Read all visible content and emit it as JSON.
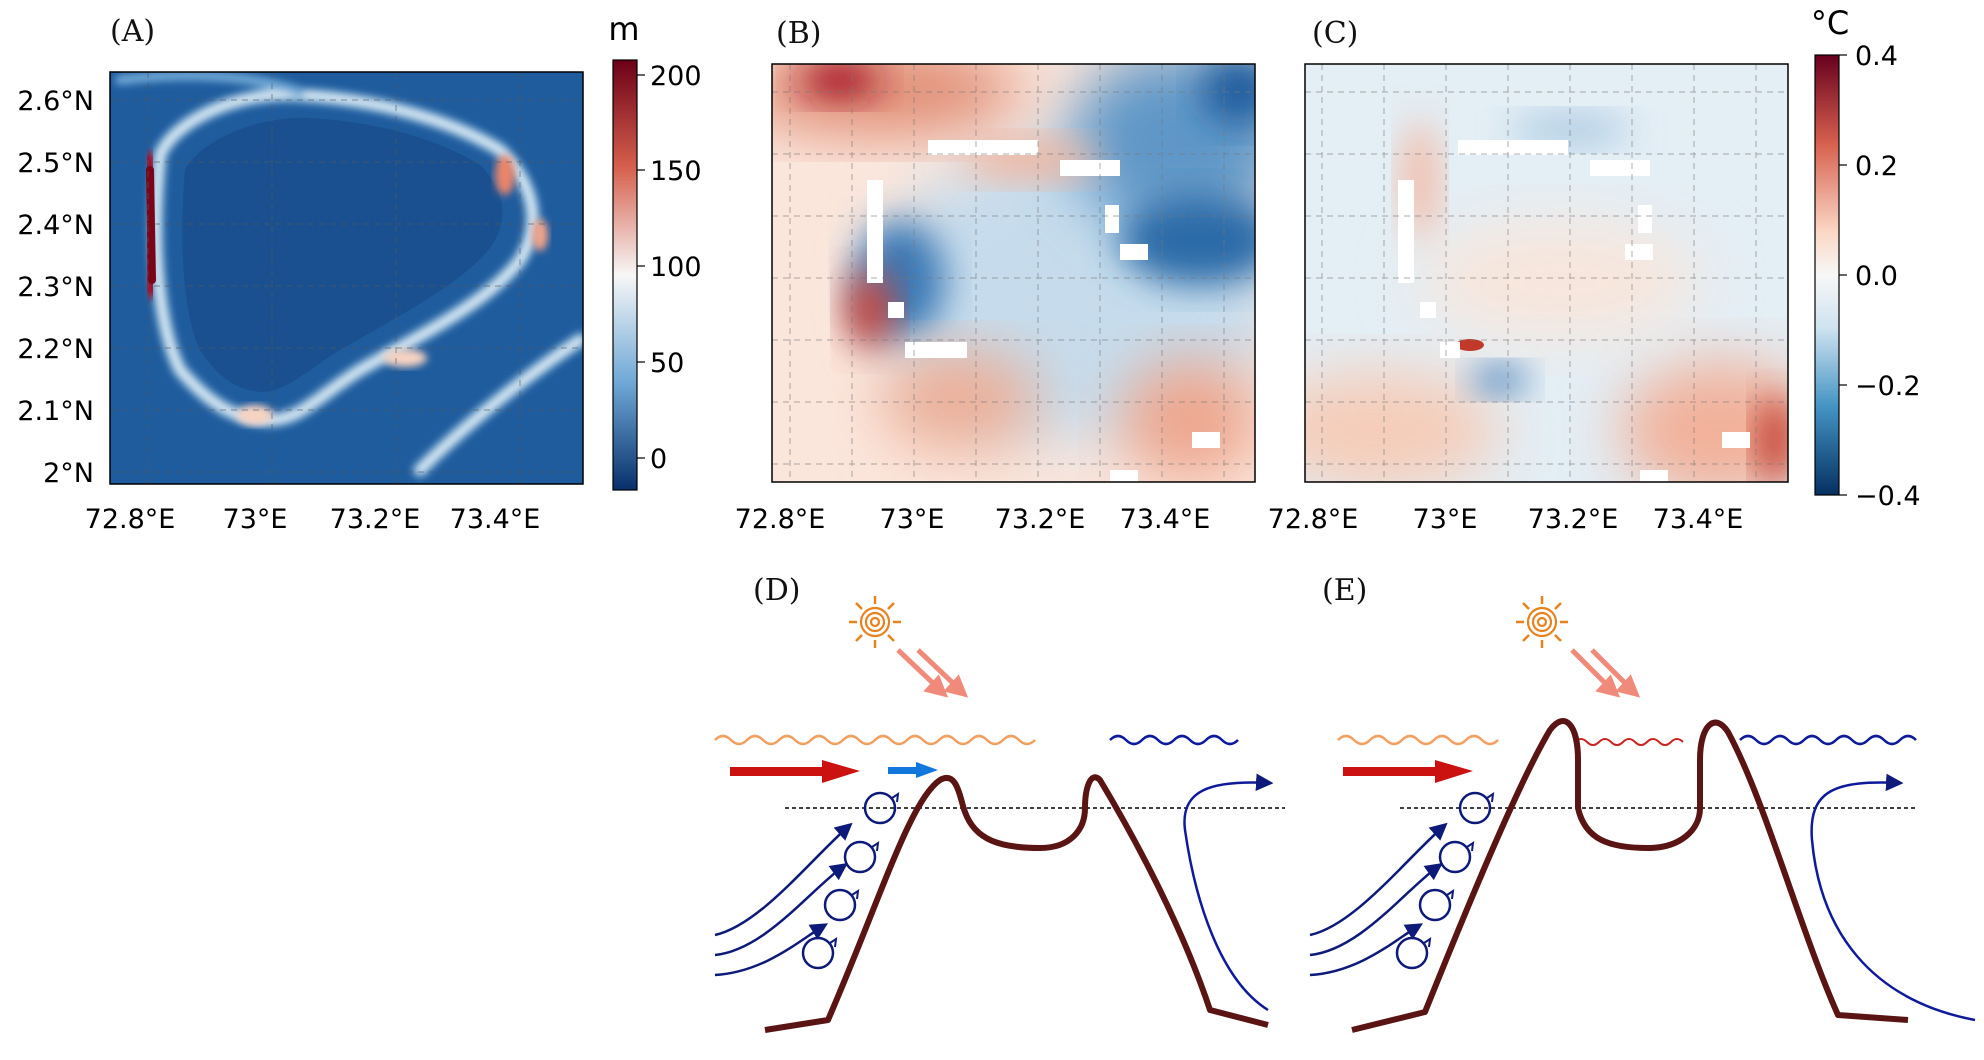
{
  "panels": {
    "a": {
      "label": "(A)"
    },
    "b": {
      "label": "(B)"
    },
    "c": {
      "label": "(C)"
    },
    "d": {
      "label": "(D)"
    },
    "e": {
      "label": "(E)"
    }
  },
  "axes": {
    "lat_ticks": [
      "2.6°N",
      "2.5°N",
      "2.4°N",
      "2.3°N",
      "2.2°N",
      "2.1°N",
      "2°N"
    ],
    "lon_ticks": [
      "72.8°E",
      "73°E",
      "73.2°E",
      "73.4°E"
    ]
  },
  "colorbar_depth": {
    "unit": "m",
    "ticks": [
      "200",
      "150",
      "100",
      "50",
      "0"
    ]
  },
  "colorbar_temp": {
    "unit": "°C",
    "ticks": [
      "0.4",
      "0.2",
      "0.0",
      "−0.2",
      "−0.4"
    ]
  },
  "colors": {
    "reef": "#5a1414",
    "flow": "#0e1a7a",
    "warm_arrow": "#cc1111",
    "cool_arrow": "#1177dd",
    "sun": "#e8821e",
    "warm_wave": "#f0a060",
    "cool_wave": "#0e1a9a"
  }
}
